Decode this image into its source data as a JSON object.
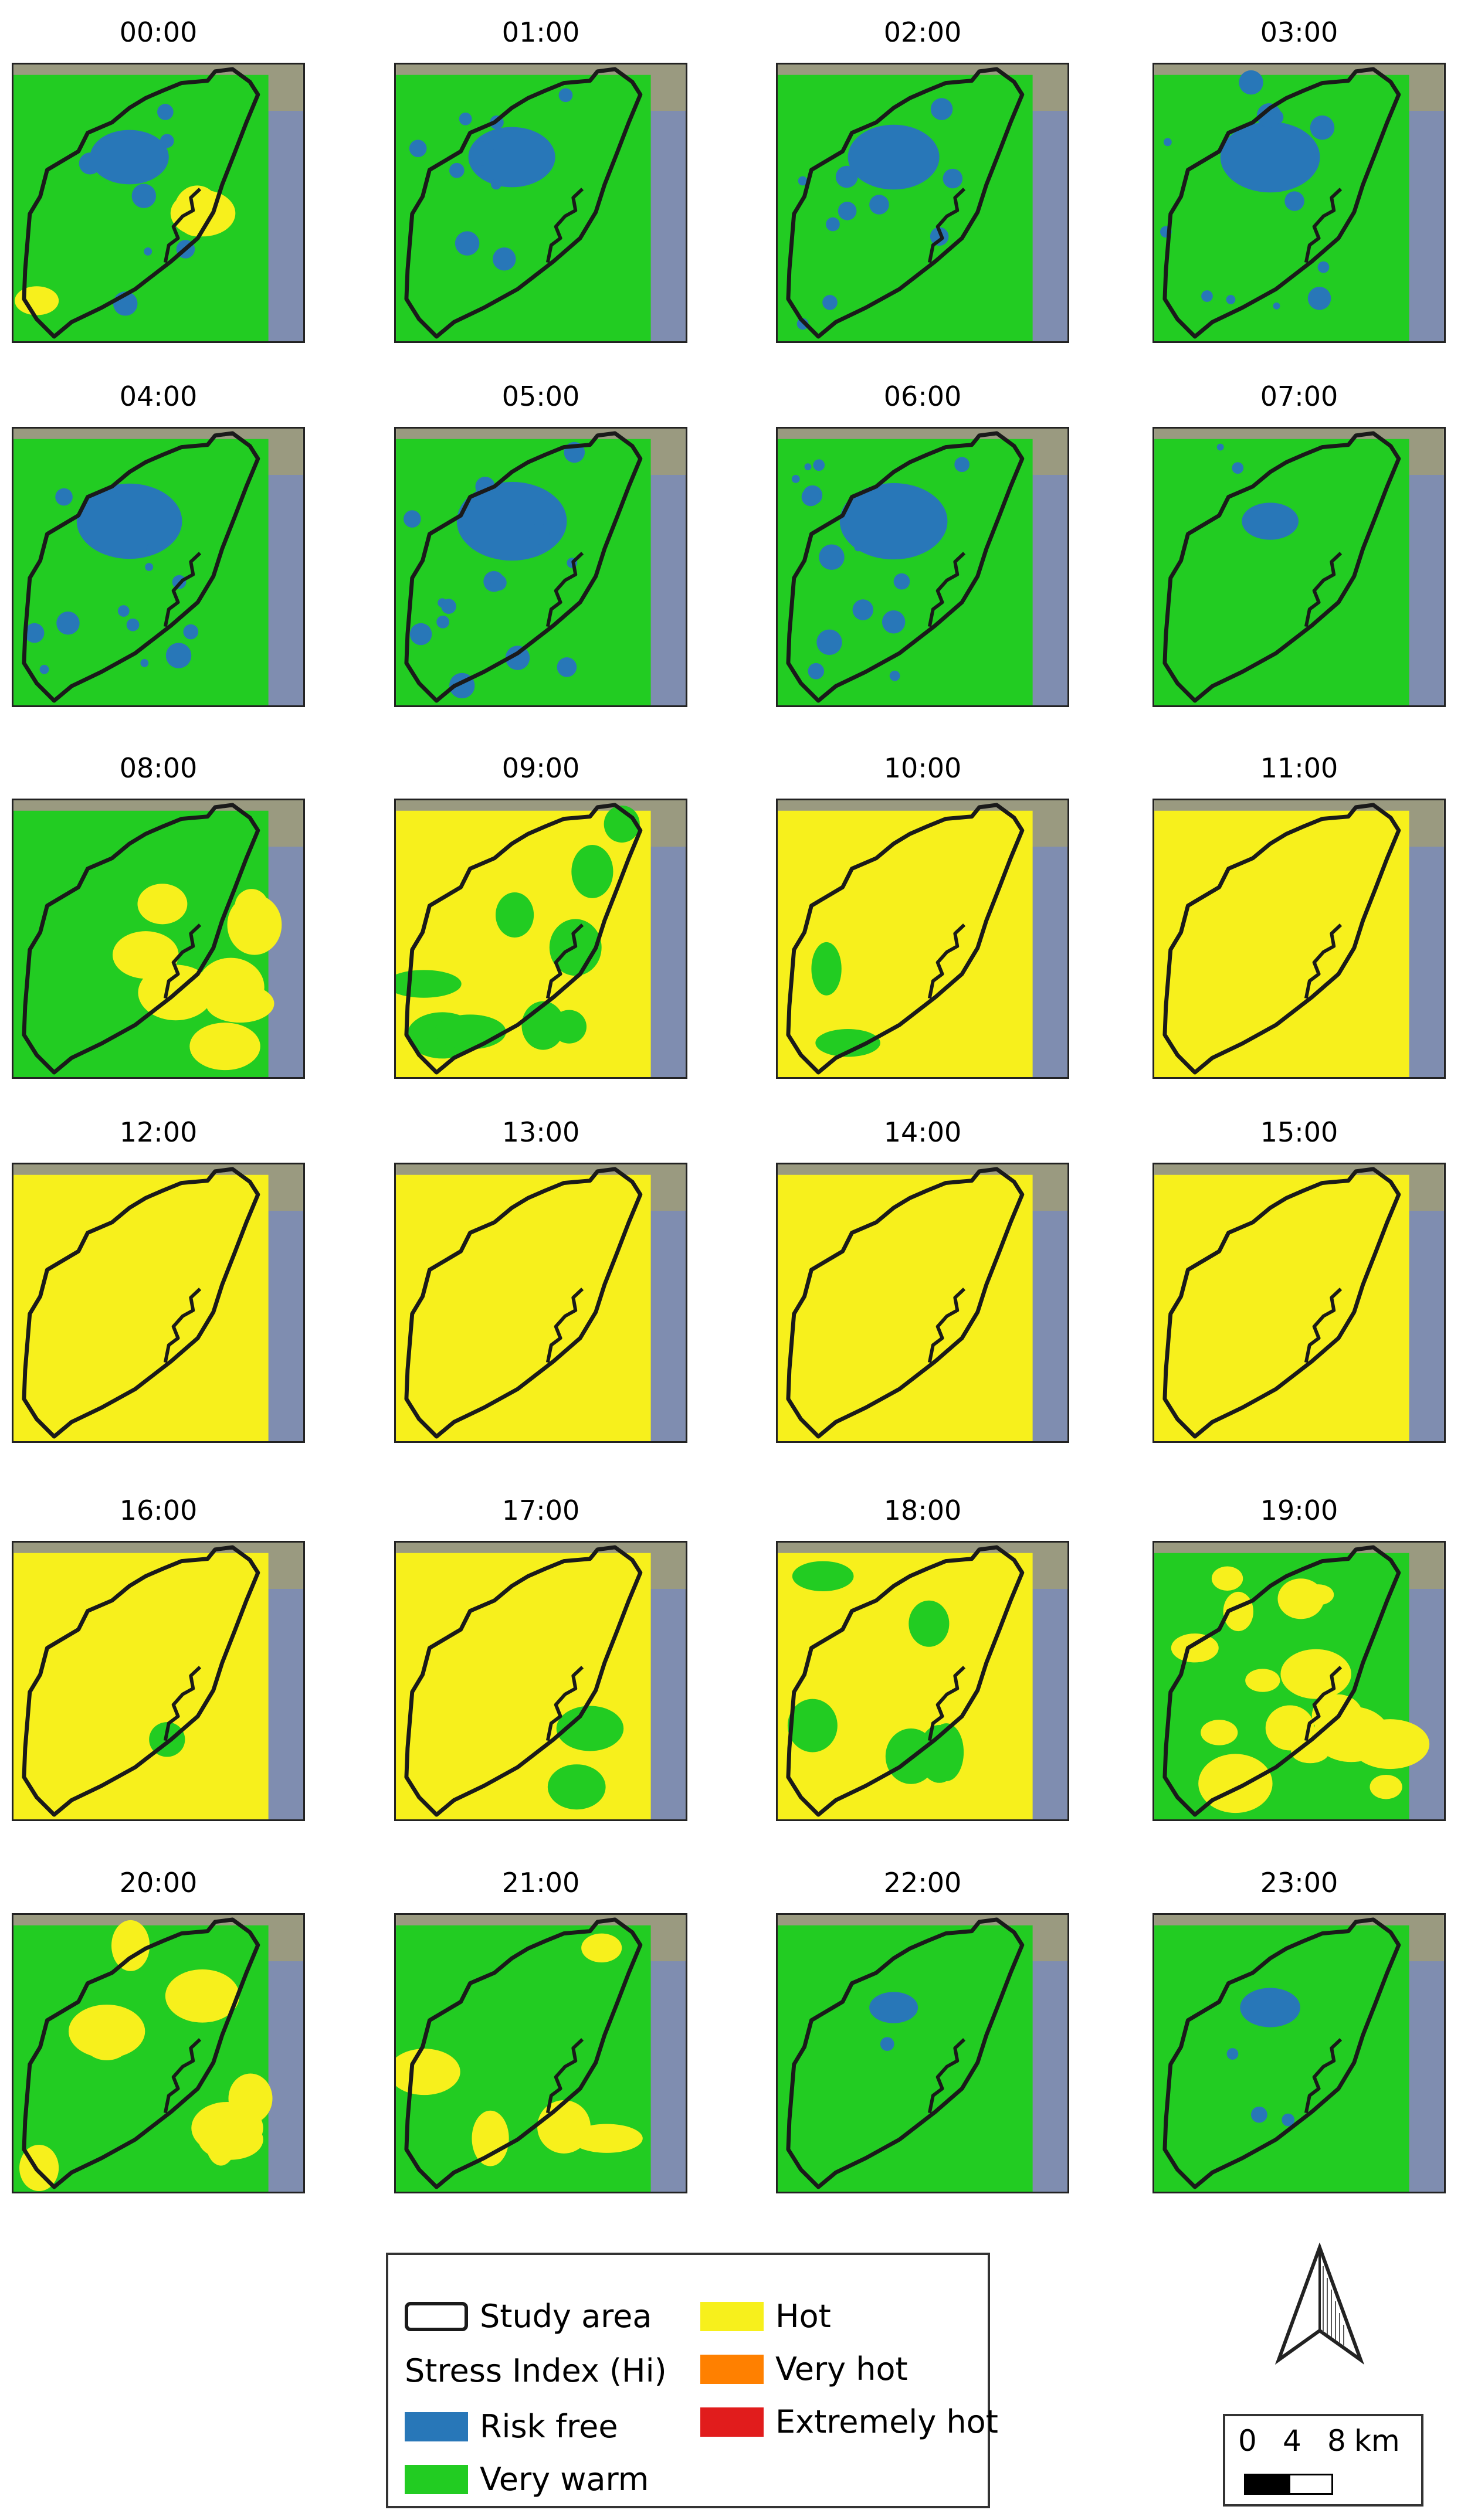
{
  "hourly_maps": [
    {
      "hour": "00:00",
      "class_mix": {
        "risk_free": 0.12,
        "very_warm": 0.8,
        "hot": 0.08
      }
    },
    {
      "hour": "01:00",
      "class_mix": {
        "risk_free": 0.15,
        "very_warm": 0.85,
        "hot": 0.0
      }
    },
    {
      "hour": "02:00",
      "class_mix": {
        "risk_free": 0.17,
        "very_warm": 0.83,
        "hot": 0.0
      }
    },
    {
      "hour": "03:00",
      "class_mix": {
        "risk_free": 0.2,
        "very_warm": 0.8,
        "hot": 0.0
      }
    },
    {
      "hour": "04:00",
      "class_mix": {
        "risk_free": 0.22,
        "very_warm": 0.78,
        "hot": 0.0
      }
    },
    {
      "hour": "05:00",
      "class_mix": {
        "risk_free": 0.24,
        "very_warm": 0.76,
        "hot": 0.0
      }
    },
    {
      "hour": "06:00",
      "class_mix": {
        "risk_free": 0.23,
        "very_warm": 0.77,
        "hot": 0.0
      }
    },
    {
      "hour": "07:00",
      "class_mix": {
        "risk_free": 0.04,
        "very_warm": 0.96,
        "hot": 0.0
      }
    },
    {
      "hour": "08:00",
      "class_mix": {
        "risk_free": 0.0,
        "very_warm": 0.8,
        "hot": 0.2
      }
    },
    {
      "hour": "09:00",
      "class_mix": {
        "risk_free": 0.0,
        "very_warm": 0.22,
        "hot": 0.78
      }
    },
    {
      "hour": "10:00",
      "class_mix": {
        "risk_free": 0.0,
        "very_warm": 0.06,
        "hot": 0.94
      }
    },
    {
      "hour": "11:00",
      "class_mix": {
        "risk_free": 0.0,
        "very_warm": 0.01,
        "hot": 0.99
      }
    },
    {
      "hour": "12:00",
      "class_mix": {
        "risk_free": 0.0,
        "very_warm": 0.0,
        "hot": 1.0
      }
    },
    {
      "hour": "13:00",
      "class_mix": {
        "risk_free": 0.0,
        "very_warm": 0.0,
        "hot": 1.0
      }
    },
    {
      "hour": "14:00",
      "class_mix": {
        "risk_free": 0.0,
        "very_warm": 0.0,
        "hot": 1.0
      }
    },
    {
      "hour": "15:00",
      "class_mix": {
        "risk_free": 0.0,
        "very_warm": 0.0,
        "hot": 1.0
      }
    },
    {
      "hour": "16:00",
      "class_mix": {
        "risk_free": 0.0,
        "very_warm": 0.03,
        "hot": 0.97
      }
    },
    {
      "hour": "17:00",
      "class_mix": {
        "risk_free": 0.0,
        "very_warm": 0.06,
        "hot": 0.94
      }
    },
    {
      "hour": "18:00",
      "class_mix": {
        "risk_free": 0.0,
        "very_warm": 0.16,
        "hot": 0.84
      }
    },
    {
      "hour": "19:00",
      "class_mix": {
        "risk_free": 0.0,
        "very_warm": 0.62,
        "hot": 0.38
      }
    },
    {
      "hour": "20:00",
      "class_mix": {
        "risk_free": 0.0,
        "very_warm": 0.78,
        "hot": 0.22
      }
    },
    {
      "hour": "21:00",
      "class_mix": {
        "risk_free": 0.0,
        "very_warm": 0.88,
        "hot": 0.12
      }
    },
    {
      "hour": "22:00",
      "class_mix": {
        "risk_free": 0.01,
        "very_warm": 0.98,
        "hot": 0.01
      }
    },
    {
      "hour": "23:00",
      "class_mix": {
        "risk_free": 0.05,
        "very_warm": 0.95,
        "hot": 0.0
      }
    }
  ],
  "legend": {
    "study_area": "Study area",
    "index_title": "Stress Index (Hi)",
    "classes": [
      {
        "key": "risk_free",
        "label": "Risk free",
        "color": "#2877b8"
      },
      {
        "key": "very_warm",
        "label": "Very warm",
        "color": "#22cc22"
      },
      {
        "key": "hot",
        "label": "Hot",
        "color": "#f7f01c"
      },
      {
        "key": "very_hot",
        "label": "Very hot",
        "color": "#ff8000"
      },
      {
        "key": "extremely_hot",
        "label": "Extremely hot",
        "color": "#e11c1c"
      }
    ]
  },
  "scale_bar": {
    "ticks": [
      "0",
      "4",
      "8"
    ],
    "unit": "km"
  },
  "north_arrow": {
    "icon": "north-arrow-icon"
  },
  "colors": {
    "outline": "#1a1a1a",
    "sea": "#7f8db0",
    "land": "#9a9a80"
  }
}
